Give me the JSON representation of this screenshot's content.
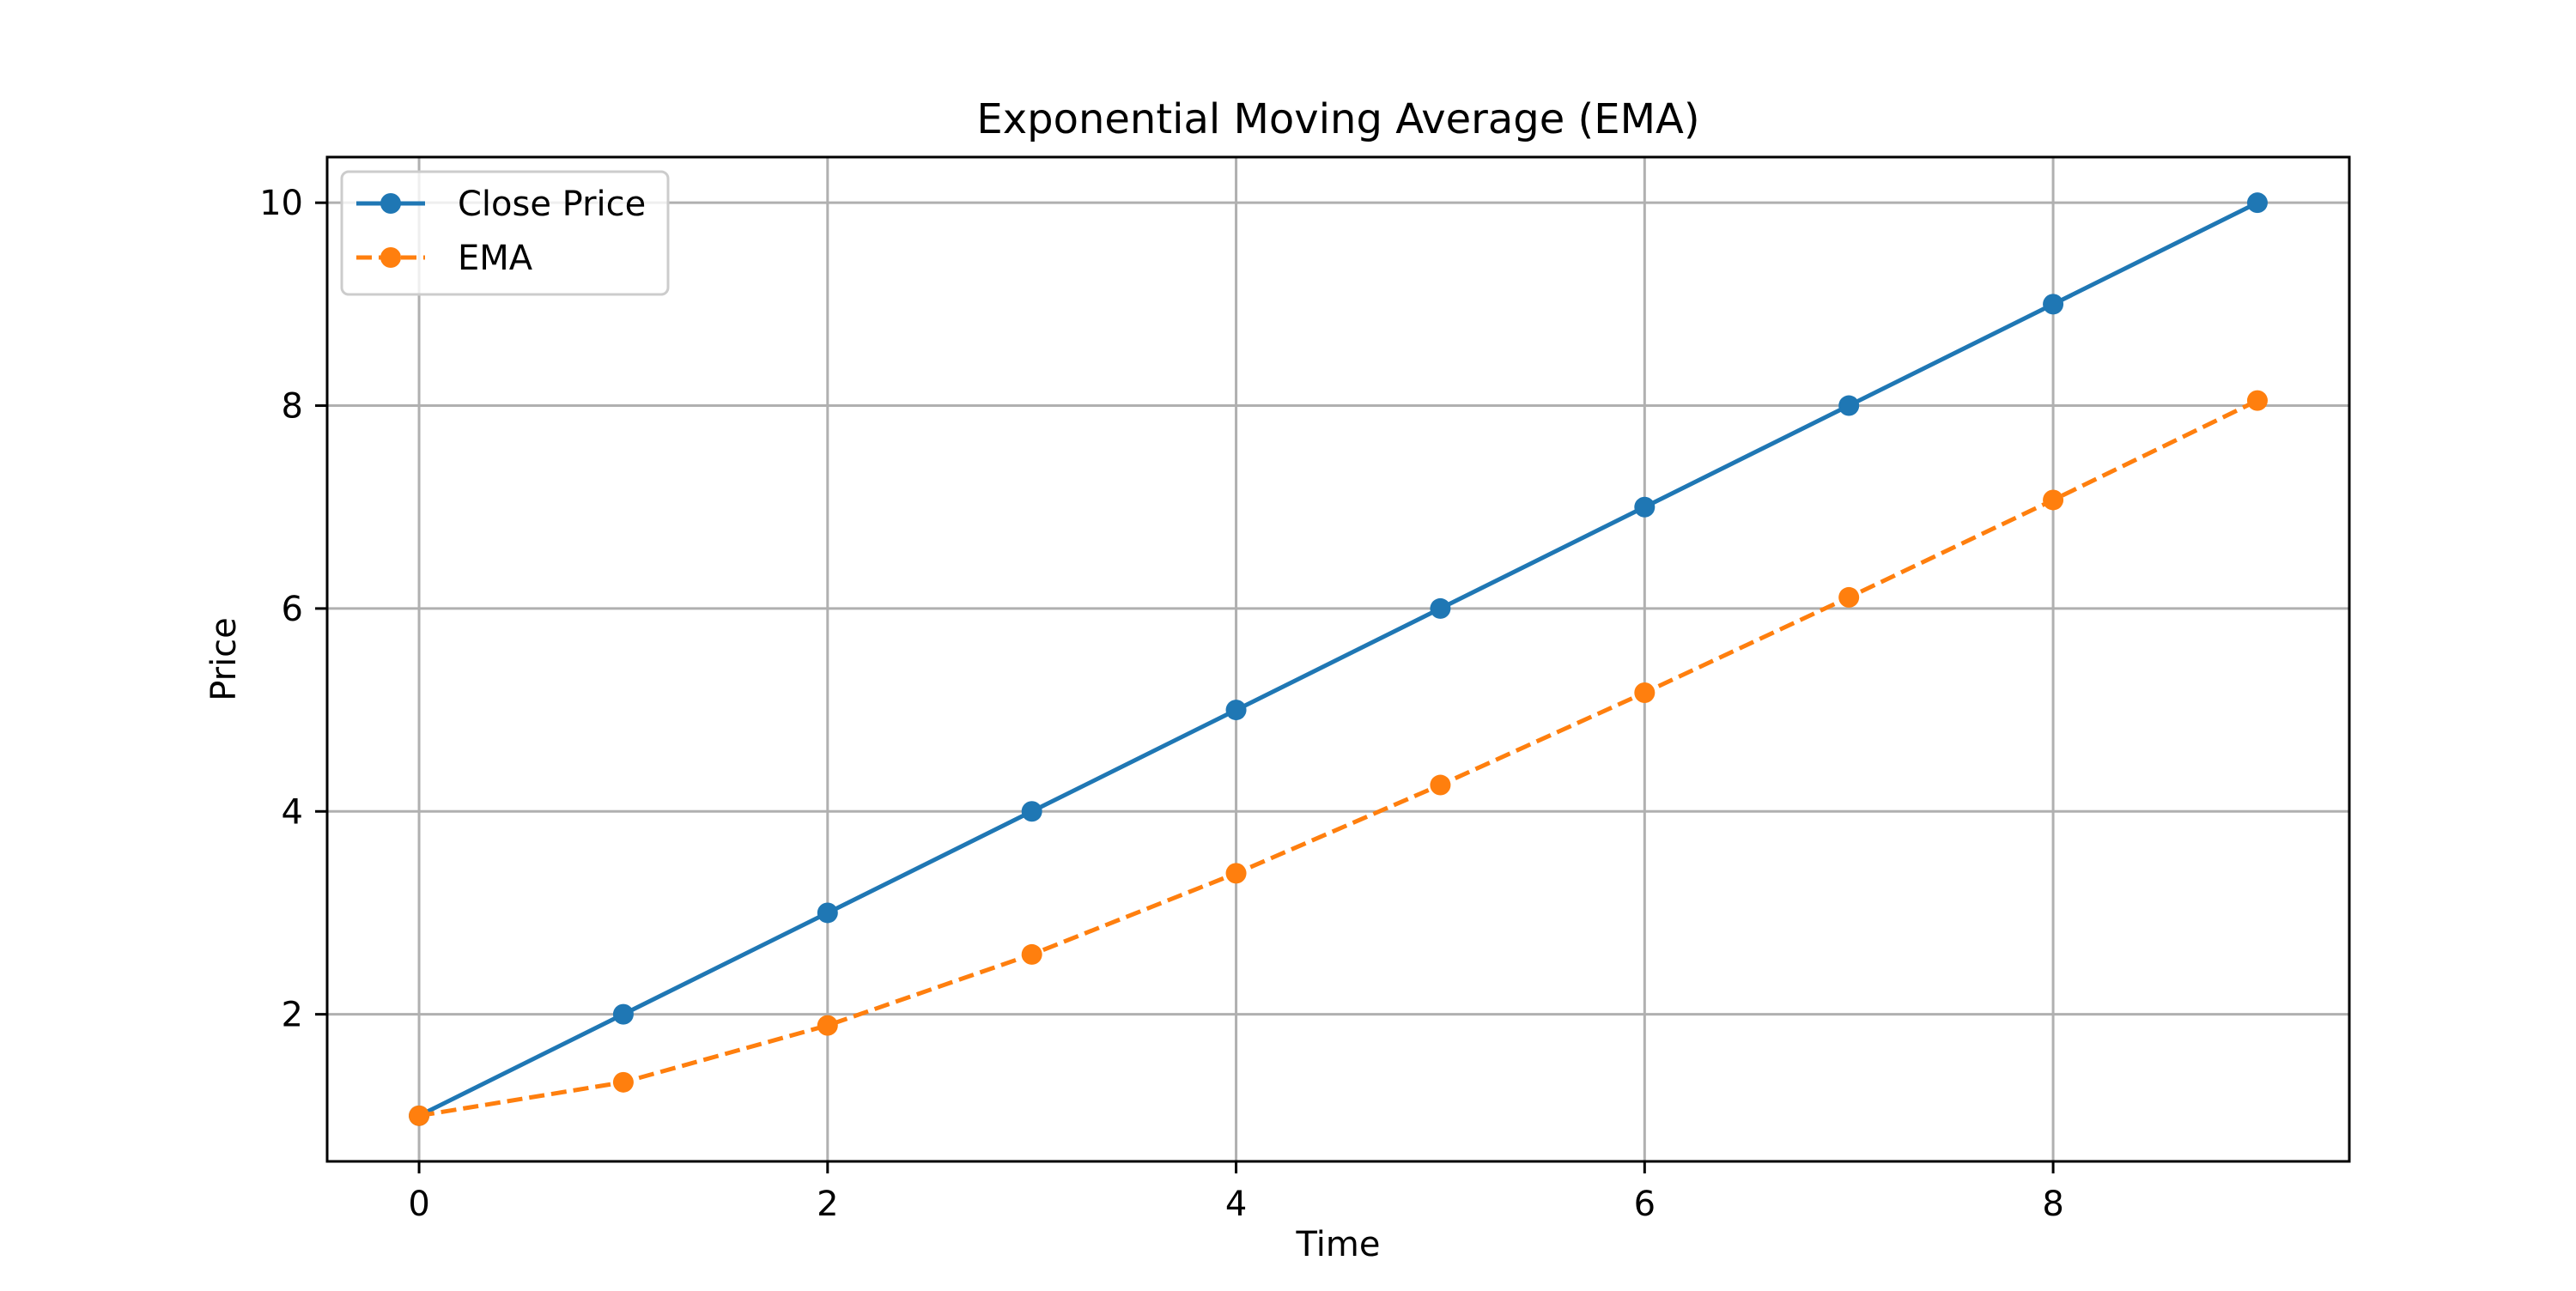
{
  "chart_data": {
    "type": "line",
    "title": "Exponential Moving Average (EMA)",
    "xlabel": "Time",
    "ylabel": "Price",
    "x": [
      0,
      1,
      2,
      3,
      4,
      5,
      6,
      7,
      8,
      9
    ],
    "xlim": [
      -0.45,
      9.45
    ],
    "ylim": [
      0.55,
      10.45
    ],
    "xticks": [
      0,
      2,
      4,
      6,
      8
    ],
    "yticks": [
      2,
      4,
      6,
      8,
      10
    ],
    "grid": true,
    "legend_position": "top-left",
    "series": [
      {
        "name": "Close Price",
        "values": [
          1,
          2,
          3,
          4,
          5,
          6,
          7,
          8,
          9,
          10
        ],
        "color": "#1f77b4",
        "line_style": "solid",
        "marker": "circle"
      },
      {
        "name": "EMA",
        "values": [
          1.0,
          1.33,
          1.89,
          2.59,
          3.39,
          4.26,
          5.17,
          6.11,
          7.07,
          8.05
        ],
        "color": "#ff7f0e",
        "line_style": "dashed",
        "marker": "circle"
      }
    ]
  }
}
